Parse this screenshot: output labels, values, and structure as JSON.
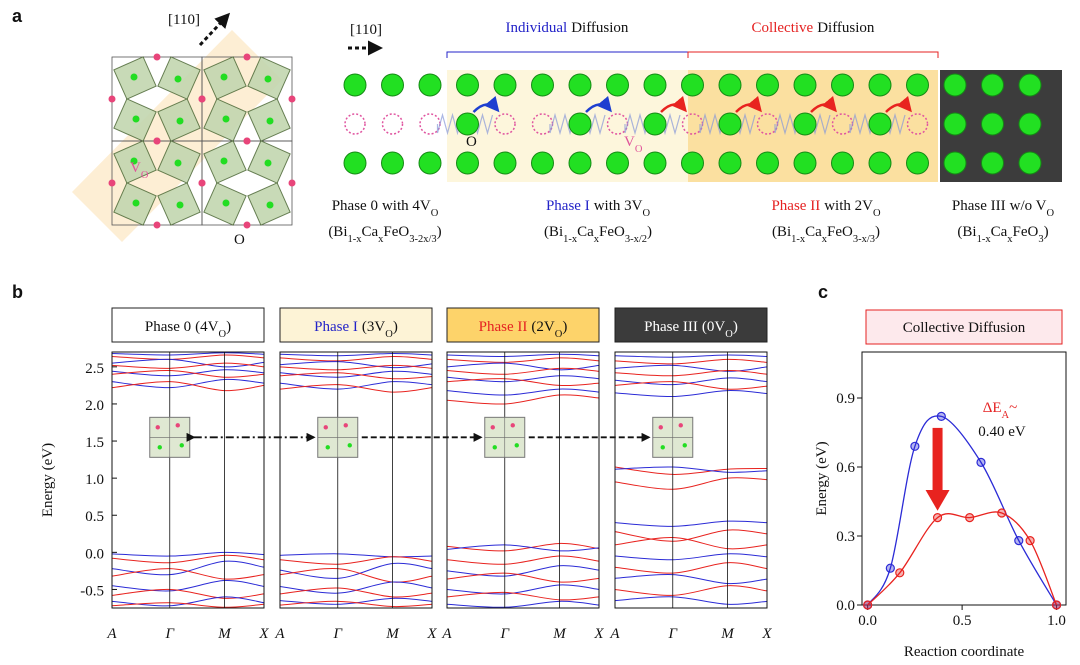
{
  "panel_a": {
    "label": "a",
    "lattice_direction": "[110]",
    "lattice_vacancy": [
      "V",
      "O"
    ],
    "lattice_oxygen": "O",
    "chain_direction": "[110]",
    "oxygen": "O",
    "vacancy": [
      "V",
      "O"
    ],
    "individual": {
      "highlight": "Individual",
      "text": "Diffusion",
      "color": "#2323c8"
    },
    "collective": {
      "highlight": "Collective",
      "text": "Diffusion",
      "color": "#e52222"
    },
    "phases": [
      {
        "name": "Phase 0",
        "name_color": "#111111",
        "rest": [
          "with 4V",
          "O"
        ],
        "formula": [
          "(Bi",
          "1-x",
          "Ca",
          "x",
          "FeO",
          "3-2x/3",
          ")"
        ]
      },
      {
        "name": "Phase I",
        "name_color": "#2323c8",
        "rest": [
          "with 3V",
          "O"
        ],
        "formula": [
          "(Bi",
          "1-x",
          "Ca",
          "x",
          "FeO",
          "3-x/2",
          ")"
        ]
      },
      {
        "name": "Phase II",
        "name_color": "#e52222",
        "rest": [
          "with 2V",
          "O"
        ],
        "formula": [
          "(Bi",
          "1-x",
          "Ca",
          "x",
          "FeO",
          "3-x/3",
          ")"
        ]
      },
      {
        "name": "Phase III",
        "name_color": "#111111",
        "rest": [
          "w/o V",
          "O"
        ],
        "formula": [
          "(Bi",
          "1-x",
          "Ca",
          "x",
          "FeO",
          "3",
          ")"
        ]
      }
    ]
  },
  "panel_b": {
    "label": "b"
  },
  "chart_data": [
    {
      "type": "band",
      "ylabel": "Energy (eV)",
      "ylim": [
        -0.75,
        2.7
      ],
      "yticks": [
        -0.5,
        {
          "value": 0,
          "label": "0.0"
        },
        0.5,
        {
          "value": 1,
          "label": "1.0"
        },
        1.5,
        {
          "value": 2,
          "label": "2.0"
        },
        2.5
      ],
      "kpoints": [
        "A",
        "Γ",
        "M",
        "X"
      ],
      "panels": [
        {
          "title": {
            "name": "Phase 0",
            "name_color": "#111111",
            "rest": [
              "(4V",
              "O",
              ")"
            ]
          },
          "fill": "#ffffff",
          "text_color": "#111111",
          "bands": [
            {
              "color": "#2b2bd6",
              "values": [
                2.68,
                2.66,
                2.69,
                2.67
              ]
            },
            {
              "color": "#e8231f",
              "values": [
                2.64,
                2.6,
                2.66,
                2.62
              ]
            },
            {
              "color": "#2b2bd6",
              "values": [
                2.55,
                2.6,
                2.5,
                2.56
              ]
            },
            {
              "color": "#e8231f",
              "values": [
                2.52,
                2.48,
                2.55,
                2.5
              ]
            },
            {
              "color": "#2b2bd6",
              "values": [
                2.44,
                2.38,
                2.46,
                2.42
              ]
            },
            {
              "color": "#e8231f",
              "values": [
                2.4,
                2.45,
                2.36,
                2.4
              ]
            },
            {
              "color": "#2b2bd6",
              "values": [
                2.3,
                2.22,
                2.33,
                2.28
              ]
            },
            {
              "color": "#e8231f",
              "values": [
                2.22,
                2.3,
                2.18,
                2.25
              ]
            },
            {
              "color": "#2b2bd6",
              "values": [
                -0.02,
                -0.05,
                0.0,
                -0.03
              ]
            },
            {
              "color": "#e8231f",
              "values": [
                -0.08,
                -0.14,
                -0.04,
                -0.1
              ]
            },
            {
              "color": "#2b2bd6",
              "values": [
                -0.22,
                -0.3,
                -0.12,
                -0.2
              ]
            },
            {
              "color": "#e8231f",
              "values": [
                -0.32,
                -0.22,
                -0.36,
                -0.3
              ]
            },
            {
              "color": "#2b2bd6",
              "values": [
                -0.45,
                -0.52,
                -0.38,
                -0.46
              ]
            },
            {
              "color": "#e8231f",
              "values": [
                -0.58,
                -0.5,
                -0.62,
                -0.56
              ]
            },
            {
              "color": "#2b2bd6",
              "values": [
                -0.66,
                -0.72,
                -0.6,
                -0.68
              ]
            },
            {
              "color": "#e8231f",
              "values": [
                -0.72,
                -0.68,
                -0.74,
                -0.7
              ]
            }
          ]
        },
        {
          "title": {
            "name": "Phase I",
            "name_color": "#2323c8",
            "rest": [
              "(3V",
              "O",
              ")"
            ]
          },
          "fill": "#fdf3d6",
          "text_color": "#111111",
          "bands": [
            {
              "color": "#2b2bd6",
              "values": [
                2.67,
                2.65,
                2.68,
                2.66
              ]
            },
            {
              "color": "#e8231f",
              "values": [
                2.62,
                2.58,
                2.64,
                2.6
              ]
            },
            {
              "color": "#2b2bd6",
              "values": [
                2.53,
                2.57,
                2.49,
                2.54
              ]
            },
            {
              "color": "#e8231f",
              "values": [
                2.5,
                2.46,
                2.52,
                2.48
              ]
            },
            {
              "color": "#2b2bd6",
              "values": [
                2.42,
                2.36,
                2.44,
                2.4
              ]
            },
            {
              "color": "#e8231f",
              "values": [
                2.38,
                2.42,
                2.34,
                2.37
              ]
            },
            {
              "color": "#2b2bd6",
              "values": [
                2.28,
                2.2,
                2.3,
                2.26
              ]
            },
            {
              "color": "#e8231f",
              "values": [
                2.2,
                2.26,
                2.16,
                2.22
              ]
            },
            {
              "color": "#2b2bd6",
              "values": [
                -0.04,
                -0.02,
                -0.06,
                -0.05
              ]
            },
            {
              "color": "#e8231f",
              "values": [
                -0.1,
                -0.16,
                -0.06,
                -0.12
              ]
            },
            {
              "color": "#2b2bd6",
              "values": [
                -0.24,
                -0.35,
                -0.15,
                -0.22
              ]
            },
            {
              "color": "#e8231f",
              "values": [
                -0.3,
                -0.22,
                -0.4,
                -0.32
              ]
            },
            {
              "color": "#2b2bd6",
              "values": [
                -0.46,
                -0.55,
                -0.4,
                -0.48
              ]
            },
            {
              "color": "#e8231f",
              "values": [
                -0.56,
                -0.48,
                -0.6,
                -0.55
              ]
            },
            {
              "color": "#2b2bd6",
              "values": [
                -0.65,
                -0.7,
                -0.62,
                -0.66
              ]
            },
            {
              "color": "#e8231f",
              "values": [
                -0.71,
                -0.66,
                -0.73,
                -0.7
              ]
            }
          ]
        },
        {
          "title": {
            "name": "Phase II",
            "name_color": "#e52222",
            "rest": [
              "(2V",
              "O",
              ")"
            ]
          },
          "fill": "#fdd36a",
          "text_color": "#111111",
          "bands": [
            {
              "color": "#2b2bd6",
              "values": [
                2.66,
                2.64,
                2.67,
                2.65
              ]
            },
            {
              "color": "#e8231f",
              "values": [
                2.6,
                2.56,
                2.62,
                2.58
              ]
            },
            {
              "color": "#2b2bd6",
              "values": [
                2.5,
                2.55,
                2.46,
                2.52
              ]
            },
            {
              "color": "#e8231f",
              "values": [
                2.45,
                2.4,
                2.48,
                2.44
              ]
            },
            {
              "color": "#2b2bd6",
              "values": [
                2.36,
                2.3,
                2.38,
                2.34
              ]
            },
            {
              "color": "#e8231f",
              "values": [
                2.3,
                2.34,
                2.25,
                2.28
              ]
            },
            {
              "color": "#2b2bd6",
              "values": [
                2.18,
                2.12,
                2.2,
                2.16
              ]
            },
            {
              "color": "#e8231f",
              "values": [
                2.05,
                2.0,
                2.12,
                2.08
              ]
            },
            {
              "color": "#e8231f",
              "values": [
                0.08,
                0.02,
                0.12,
                0.05
              ]
            },
            {
              "color": "#2b2bd6",
              "values": [
                0.04,
                0.1,
                0.02,
                0.06
              ]
            },
            {
              "color": "#e8231f",
              "values": [
                -0.1,
                -0.16,
                -0.05,
                -0.12
              ]
            },
            {
              "color": "#2b2bd6",
              "values": [
                -0.25,
                -0.32,
                -0.18,
                -0.24
              ]
            },
            {
              "color": "#e8231f",
              "values": [
                -0.36,
                -0.28,
                -0.4,
                -0.35
              ]
            },
            {
              "color": "#2b2bd6",
              "values": [
                -0.5,
                -0.56,
                -0.44,
                -0.5
              ]
            },
            {
              "color": "#e8231f",
              "values": [
                -0.6,
                -0.54,
                -0.64,
                -0.6
              ]
            },
            {
              "color": "#2b2bd6",
              "values": [
                -0.7,
                -0.74,
                -0.66,
                -0.71
              ]
            }
          ]
        },
        {
          "title": {
            "name": "Phase III",
            "name_color": "#ffffff",
            "rest": [
              "(0V",
              "O",
              ")"
            ]
          },
          "fill": "#3b3b3b",
          "text_color": "#ffffff",
          "bands": [
            {
              "color": "#2b2bd6",
              "values": [
                2.65,
                2.63,
                2.66,
                2.64
              ]
            },
            {
              "color": "#e8231f",
              "values": [
                2.58,
                2.54,
                2.6,
                2.56
              ]
            },
            {
              "color": "#2b2bd6",
              "values": [
                2.48,
                2.52,
                2.44,
                2.5
              ]
            },
            {
              "color": "#e8231f",
              "values": [
                2.42,
                2.38,
                2.45,
                2.4
              ]
            },
            {
              "color": "#2b2bd6",
              "values": [
                2.32,
                2.26,
                2.35,
                2.3
              ]
            },
            {
              "color": "#e8231f",
              "values": [
                2.25,
                2.3,
                2.2,
                2.24
              ]
            },
            {
              "color": "#2b2bd6",
              "values": [
                2.15,
                2.1,
                2.18,
                2.14
              ]
            },
            {
              "color": "#e8231f",
              "values": [
                1.15,
                1.05,
                1.12,
                1.13
              ]
            },
            {
              "color": "#2b2bd6",
              "values": [
                1.12,
                1.15,
                1.08,
                1.1
              ]
            },
            {
              "color": "#e8231f",
              "values": [
                0.95,
                0.85,
                1.0,
                0.98
              ]
            },
            {
              "color": "#2b2bd6",
              "values": [
                0.4,
                0.35,
                0.42,
                0.4
              ]
            },
            {
              "color": "#e8231f",
              "values": [
                0.28,
                0.15,
                0.3,
                0.25
              ]
            },
            {
              "color": "#e8231f",
              "values": [
                0.1,
                0.2,
                0.05,
                0.1
              ]
            },
            {
              "color": "#2b2bd6",
              "values": [
                -0.05,
                -0.1,
                -0.02,
                -0.06
              ]
            },
            {
              "color": "#e8231f",
              "values": [
                -0.2,
                -0.28,
                -0.14,
                -0.22
              ]
            },
            {
              "color": "#2b2bd6",
              "values": [
                -0.35,
                -0.3,
                -0.42,
                -0.36
              ]
            },
            {
              "color": "#e8231f",
              "values": [
                -0.5,
                -0.58,
                -0.45,
                -0.52
              ]
            },
            {
              "color": "#2b2bd6",
              "values": [
                -0.65,
                -0.6,
                -0.7,
                -0.66
              ]
            }
          ]
        }
      ]
    },
    {
      "type": "line",
      "label": "c",
      "title": "Collective Diffusion",
      "title_fill": "#fde9ec",
      "title_color": "#e52222",
      "xlabel": "Reaction coordinate",
      "ylabel": "Energy (eV)",
      "xlim": [
        -0.03,
        1.05
      ],
      "ylim": [
        0,
        1.1
      ],
      "xticks": [
        {
          "value": 0,
          "label": "0.0"
        },
        0.5,
        {
          "value": 1,
          "label": "1.0"
        }
      ],
      "yticks": [
        {
          "value": 0,
          "label": "0.0"
        },
        0.3,
        0.6,
        0.9
      ],
      "annotation": [
        "ΔE",
        "A",
        "~"
      ],
      "annotation_value": "0.40 eV",
      "annotation_color": "#e52222",
      "series": [
        {
          "color": "#2b2bd6",
          "x": [
            0,
            0.12,
            0.25,
            0.39,
            0.6,
            0.8,
            1.0
          ],
          "values": [
            0,
            0.16,
            0.69,
            0.82,
            0.62,
            0.28,
            0
          ]
        },
        {
          "color": "#e8231f",
          "x": [
            0,
            0.17,
            0.37,
            0.54,
            0.71,
            0.86,
            1.0
          ],
          "values": [
            0,
            0.14,
            0.38,
            0.38,
            0.4,
            0.28,
            0
          ]
        }
      ]
    }
  ]
}
